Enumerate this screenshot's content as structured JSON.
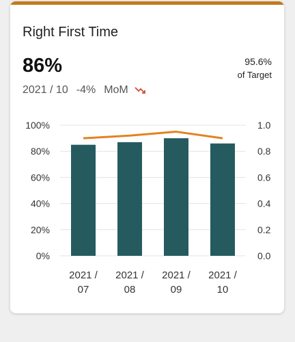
{
  "card": {
    "title": "Right First Time",
    "value": "86%",
    "target_pct": "95.6%",
    "target_label": "of Target",
    "period": "2021 / 10",
    "change": "-4%",
    "change_basis": "MoM",
    "trend_icon": "trend-down-icon"
  },
  "colors": {
    "bar": "#255b5e",
    "line": "#e2831f",
    "accent": "#c47a1f",
    "trend_down": "#d04a3a"
  },
  "chart_data": {
    "type": "bar",
    "categories": [
      "2021 / 07",
      "2021 / 08",
      "2021 / 09",
      "2021 / 10"
    ],
    "category_lines": [
      [
        "2021 /",
        "07"
      ],
      [
        "2021 /",
        "08"
      ],
      [
        "2021 /",
        "09"
      ],
      [
        "2021 /",
        "10"
      ]
    ],
    "series": [
      {
        "type": "bar",
        "axis": "left",
        "values": [
          85,
          87,
          90,
          86
        ]
      },
      {
        "type": "line",
        "axis": "right",
        "values": [
          0.9,
          0.92,
          0.95,
          0.9
        ]
      }
    ],
    "y_left": {
      "ylim": [
        0,
        100
      ],
      "ticks": [
        0,
        20,
        40,
        60,
        80,
        100
      ],
      "tick_labels": [
        "0%",
        "20%",
        "40%",
        "60%",
        "80%",
        "100%"
      ]
    },
    "y_right": {
      "ylim": [
        0,
        1
      ],
      "ticks": [
        0,
        0.2,
        0.4,
        0.6,
        0.8,
        1.0
      ],
      "tick_labels": [
        "0.0",
        "0.2",
        "0.4",
        "0.6",
        "0.8",
        "1.0"
      ]
    },
    "grid": true,
    "legend": "none"
  }
}
